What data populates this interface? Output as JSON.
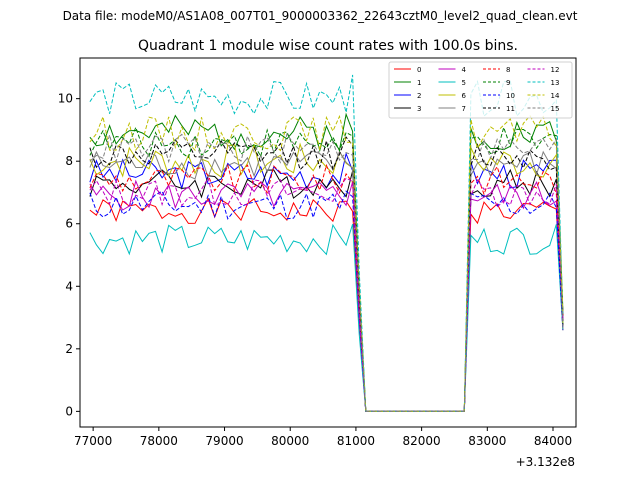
{
  "suptitle": "Data file: modeM0/AS1A08_007T01_9000003362_22643cztM0_level2_quad_clean.evt",
  "chart_data": {
    "type": "line",
    "title": "Quadrant 1 module wise count rates with 100.0s bins.",
    "xlabel": "",
    "ylabel": "",
    "offset_label": "+3.132e8",
    "x_offset": 313200000,
    "xlim": [
      76800,
      84350
    ],
    "ylim": [
      -0.5,
      11.3
    ],
    "x_ticks": [
      77000,
      78000,
      79000,
      80000,
      81000,
      82000,
      83000,
      84000
    ],
    "x_tick_labels": [
      "77000",
      "78000",
      "79000",
      "80000",
      "81000",
      "82000",
      "83000",
      "84000"
    ],
    "y_ticks": [
      0,
      2,
      4,
      6,
      8,
      10
    ],
    "y_tick_labels": [
      "0",
      "2",
      "4",
      "6",
      "8",
      "10"
    ],
    "grid": false,
    "legend_position": "top-right",
    "legend_columns": 4,
    "data_segments": [
      {
        "start": 76950,
        "end": 81050
      },
      {
        "start": 82700,
        "end": 84150
      }
    ],
    "bin_size": 100,
    "series": [
      {
        "name": "0",
        "color": "#ff0000",
        "dash": "solid",
        "mean": 6.4,
        "amp": 0.25,
        "seed": 1
      },
      {
        "name": "1",
        "color": "#008000",
        "dash": "solid",
        "mean": 8.9,
        "amp": 0.35,
        "seed": 2
      },
      {
        "name": "2",
        "color": "#0000ff",
        "dash": "solid",
        "mean": 7.6,
        "amp": 0.3,
        "seed": 3
      },
      {
        "name": "3",
        "color": "#000000",
        "dash": "solid",
        "mean": 7.3,
        "amp": 0.3,
        "seed": 4
      },
      {
        "name": "4",
        "color": "#bf00bf",
        "dash": "solid",
        "mean": 6.9,
        "amp": 0.3,
        "seed": 5
      },
      {
        "name": "5",
        "color": "#00bfbf",
        "dash": "solid",
        "mean": 5.5,
        "amp": 0.3,
        "seed": 6
      },
      {
        "name": "6",
        "color": "#bfbf00",
        "dash": "solid",
        "mean": 8.0,
        "amp": 0.35,
        "seed": 7
      },
      {
        "name": "7",
        "color": "#808080",
        "dash": "solid",
        "mean": 7.9,
        "amp": 0.3,
        "seed": 8
      },
      {
        "name": "8",
        "color": "#ff0000",
        "dash": "dashed",
        "mean": 7.4,
        "amp": 0.3,
        "seed": 9
      },
      {
        "name": "9",
        "color": "#008000",
        "dash": "dashed",
        "mean": 8.6,
        "amp": 0.3,
        "seed": 10
      },
      {
        "name": "10",
        "color": "#0000ff",
        "dash": "dashed",
        "mean": 6.6,
        "amp": 0.3,
        "seed": 11
      },
      {
        "name": "11",
        "color": "#000000",
        "dash": "dashed",
        "mean": 8.2,
        "amp": 0.3,
        "seed": 12
      },
      {
        "name": "12",
        "color": "#bf00bf",
        "dash": "dashed",
        "mean": 7.0,
        "amp": 0.3,
        "seed": 13
      },
      {
        "name": "13",
        "color": "#00bfbf",
        "dash": "dashed",
        "mean": 10.0,
        "amp": 0.35,
        "seed": 14
      },
      {
        "name": "14",
        "color": "#bfbf00",
        "dash": "dashed",
        "mean": 8.9,
        "amp": 0.35,
        "seed": 15
      },
      {
        "name": "15",
        "color": "#808080",
        "dash": "dashed",
        "mean": 8.4,
        "amp": 0.3,
        "seed": 16
      }
    ]
  }
}
